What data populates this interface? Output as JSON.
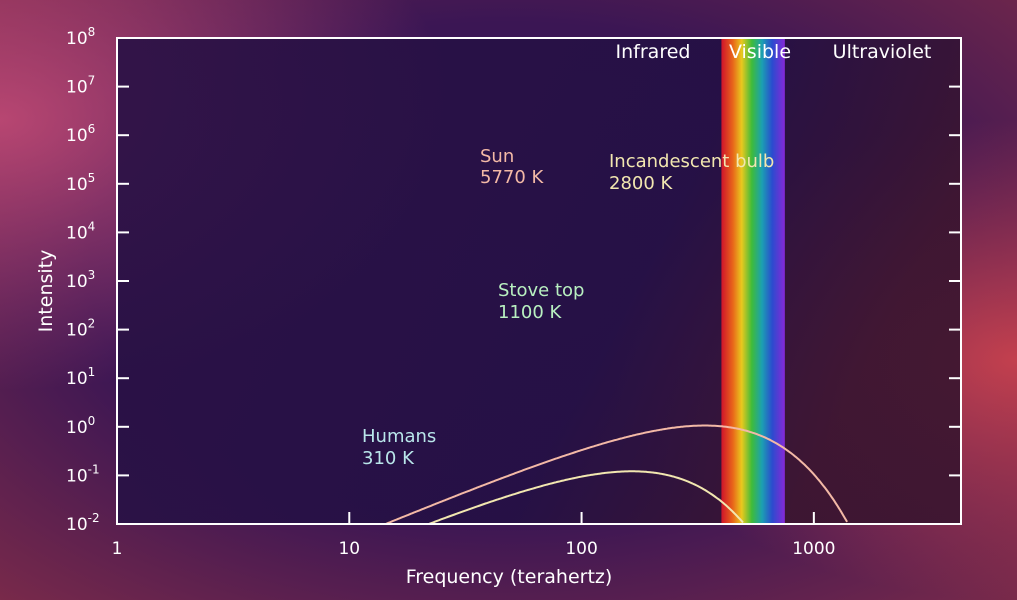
{
  "chart_data": {
    "type": "line",
    "xlabel": "Frequency (terahertz)",
    "ylabel": "Intensity",
    "x_scale": "log",
    "y_scale": "log",
    "xlim": [
      1,
      4300
    ],
    "ylim": [
      0.01,
      100000000
    ],
    "x_ticks": [
      {
        "value": 1,
        "label": "1"
      },
      {
        "value": 10,
        "label": "10"
      },
      {
        "value": 100,
        "label": "100"
      },
      {
        "value": 1000,
        "label": "1000"
      }
    ],
    "y_ticks": [
      {
        "exp": 8,
        "base": "10",
        "sup": "8"
      },
      {
        "exp": 7,
        "base": "10",
        "sup": "7"
      },
      {
        "exp": 6,
        "base": "10",
        "sup": "6"
      },
      {
        "exp": 5,
        "base": "10",
        "sup": "5"
      },
      {
        "exp": 4,
        "base": "10",
        "sup": "4"
      },
      {
        "exp": 3,
        "base": "10",
        "sup": "3"
      },
      {
        "exp": 2,
        "base": "10",
        "sup": "2"
      },
      {
        "exp": 1,
        "base": "10",
        "sup": "1"
      },
      {
        "exp": 0,
        "base": "10",
        "sup": "0"
      },
      {
        "exp": -1,
        "base": "10",
        "sup": "-1"
      },
      {
        "exp": -2,
        "base": "10",
        "sup": "-2"
      }
    ],
    "bands": [
      {
        "label": "Infrared"
      },
      {
        "label": "Visible",
        "from": 400,
        "to": 750
      },
      {
        "label": "Ultraviolet"
      }
    ],
    "series": [
      {
        "name": "Sun",
        "temperature": "5770 K",
        "color": "#f3b9a6"
      },
      {
        "name": "Incandescent bulb",
        "temperature": "2800 K",
        "color": "#f2e7b0"
      },
      {
        "name": "Stove top",
        "temperature": "1100 K",
        "color": "#b8f0c0"
      },
      {
        "name": "Humans",
        "temperature": "310 K",
        "color": "#b9e6ea"
      }
    ],
    "grid": false
  }
}
